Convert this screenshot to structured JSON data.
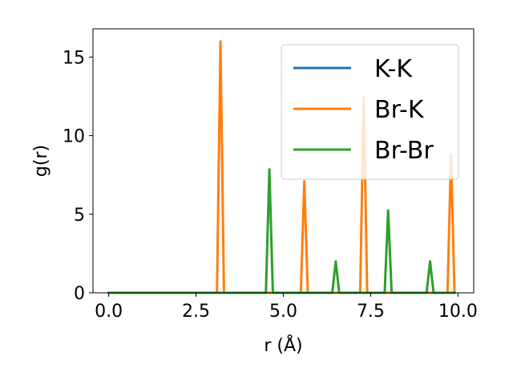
{
  "chart_data": {
    "type": "line",
    "xlabel": "r (Å)",
    "ylabel": "g(r)",
    "xlim": [
      -0.45,
      10.45
    ],
    "ylim": [
      0,
      16.8
    ],
    "xticks": [
      0.0,
      2.5,
      5.0,
      7.5,
      10.0
    ],
    "xtick_labels": [
      "0.0",
      "2.5",
      "5.0",
      "7.5",
      "10.0"
    ],
    "yticks": [
      0,
      5,
      10,
      15
    ],
    "ytick_labels": [
      "0",
      "5",
      "10",
      "15"
    ],
    "grid": false,
    "legend_position": "top-right",
    "series": [
      {
        "name": "K-K",
        "color": "#1f77b4",
        "x": [
          0.0,
          9.9
        ],
        "y": [
          0,
          0
        ]
      },
      {
        "name": "Br-K",
        "color": "#ff7f0e",
        "x": [
          0.0,
          3.1,
          3.2,
          3.3,
          5.5,
          5.6,
          5.7,
          7.2,
          7.3,
          7.4,
          9.7,
          9.8,
          9.9
        ],
        "y": [
          0,
          0,
          16.0,
          0,
          0,
          7.1,
          0,
          0,
          12.5,
          0,
          0,
          8.8,
          0
        ]
      },
      {
        "name": "Br-Br",
        "color": "#2ca02c",
        "x": [
          0.0,
          4.5,
          4.6,
          4.7,
          6.4,
          6.5,
          6.6,
          7.9,
          8.0,
          8.1,
          9.1,
          9.2,
          9.3,
          9.9
        ],
        "y": [
          0,
          0,
          7.85,
          0,
          0,
          2.0,
          0,
          0,
          5.25,
          0,
          0,
          2.0,
          0,
          0
        ]
      }
    ]
  }
}
